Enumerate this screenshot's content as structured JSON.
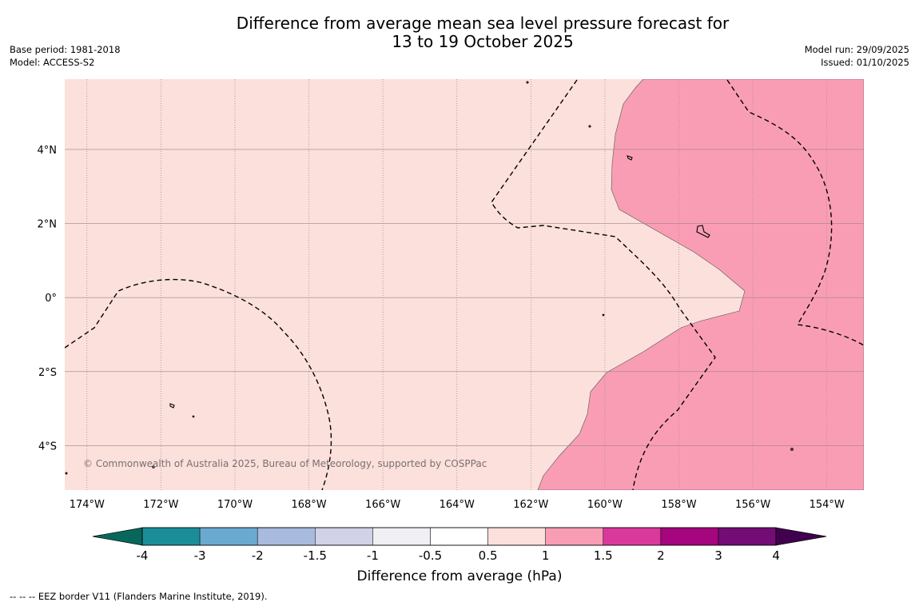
{
  "title": {
    "line1": "Difference from average mean sea level pressure forecast for",
    "line2": "13 to 19 October 2025"
  },
  "meta_left": {
    "base_period": "Base period: 1981-2018",
    "model": "Model: ACCESS-S2"
  },
  "meta_right": {
    "model_run": "Model run: 29/09/2025",
    "issued": "Issued: 01/10/2025"
  },
  "map": {
    "copyright": "© Commonwealth of Australia 2025, Bureau of Meteorology, supported by COSPPac",
    "lon_range": [
      -174.6,
      -153.0
    ],
    "lat_range": [
      -5.2,
      5.9
    ],
    "lon_ticks": [
      "174°W",
      "172°W",
      "170°W",
      "168°W",
      "166°W",
      "164°W",
      "162°W",
      "160°W",
      "158°W",
      "156°W",
      "154°W"
    ],
    "lon_tick_values": [
      -174,
      -172,
      -170,
      -168,
      -166,
      -164,
      -162,
      -160,
      -158,
      -156,
      -154
    ],
    "lat_ticks": [
      "4°N",
      "2°N",
      "0°",
      "2°S",
      "4°S"
    ],
    "lat_tick_values": [
      4,
      2,
      0,
      -2,
      -4
    ],
    "colors": {
      "band_0_5_to_1": "#fbe0dc",
      "band_1_to_1_5": "#f99db5"
    }
  },
  "colorbar": {
    "label": "Difference from average (hPa)",
    "ticks": [
      "-4",
      "-3",
      "-2",
      "-1.5",
      "-1",
      "-0.5",
      "0.5",
      "1",
      "1.5",
      "2",
      "3",
      "4"
    ],
    "colors": [
      "#08675c",
      "#1b8d98",
      "#6aa9d0",
      "#a8bbdf",
      "#d1d1e8",
      "#f0eff3",
      "#ffffff",
      "#fbe0dc",
      "#f99db5",
      "#d9399a",
      "#a5057e",
      "#730d75",
      "#41004f"
    ]
  },
  "footnote": "--  --  -- EEZ border V11 (Flanders Marine Institute, 2019)."
}
